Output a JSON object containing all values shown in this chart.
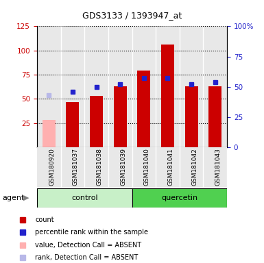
{
  "title": "GDS3133 / 1393947_at",
  "categories": [
    "GSM180920",
    "GSM181037",
    "GSM181038",
    "GSM181039",
    "GSM181040",
    "GSM181041",
    "GSM181042",
    "GSM181043"
  ],
  "bar_values": [
    28,
    47,
    53,
    63,
    79,
    106,
    63,
    63
  ],
  "bar_absent": [
    true,
    false,
    false,
    false,
    false,
    false,
    false,
    false
  ],
  "rank_values": [
    43,
    46,
    50,
    52,
    57,
    57,
    52,
    54
  ],
  "rank_absent": [
    true,
    false,
    false,
    false,
    false,
    false,
    false,
    false
  ],
  "control_color": "#c8f0c8",
  "quercetin_color": "#50d050",
  "ylim_left": [
    0,
    125
  ],
  "ylim_right": [
    0,
    100
  ],
  "yticks_left": [
    25,
    50,
    75,
    100,
    125
  ],
  "yticks_right": [
    0,
    25,
    50,
    75,
    100
  ],
  "ytick_labels_right": [
    "0",
    "25",
    "50",
    "75",
    "100%"
  ],
  "bar_color": "#cc0000",
  "bar_absent_color": "#ffb0b0",
  "rank_color": "#2222cc",
  "rank_absent_color": "#b8b8e8",
  "bg_color": "#e8e8e8",
  "bar_width": 0.55
}
